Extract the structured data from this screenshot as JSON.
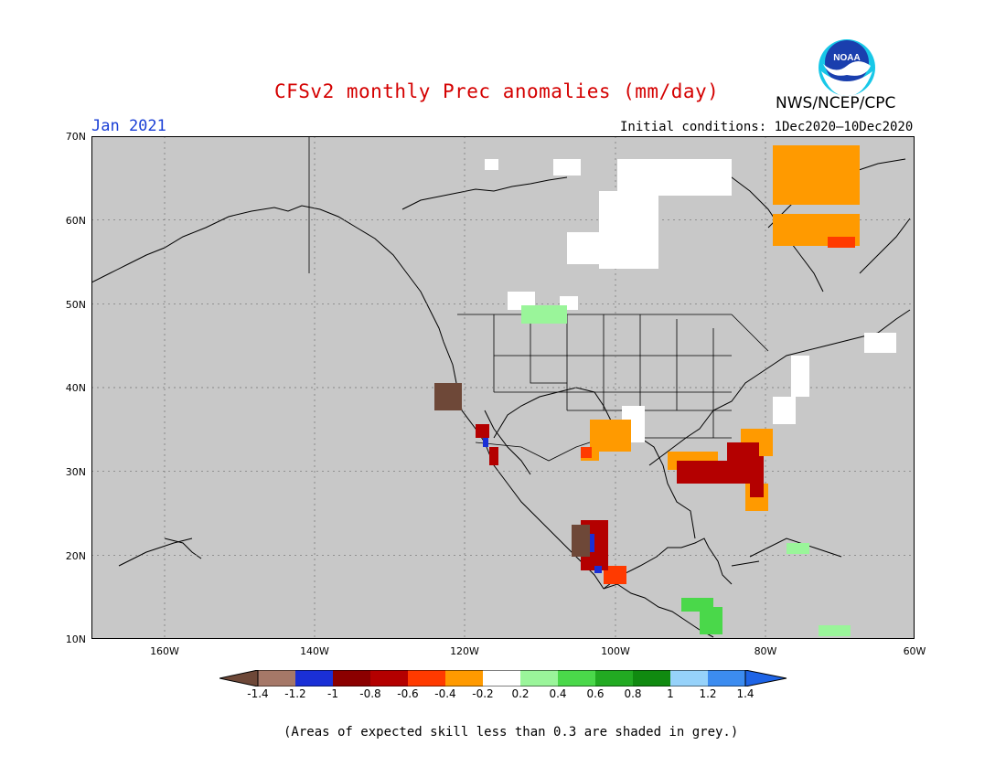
{
  "header": {
    "title": "CFSv2 monthly Prec anomalies (mm/day)",
    "date": "Jan 2021",
    "initial_conditions": "Initial conditions: 1Dec2020—10Dec2020",
    "org": "NWS/NCEP/CPC",
    "logo_text": "NOAA"
  },
  "map": {
    "projection": "lat-lon",
    "lon_range": [
      -172,
      -60
    ],
    "lat_range": [
      10,
      70
    ],
    "lat_labels": [
      "70N",
      "60N",
      "50N",
      "40N",
      "30N",
      "20N",
      "10N"
    ],
    "lon_labels": [
      "160W",
      "140W",
      "120W",
      "100W",
      "80W",
      "60W"
    ],
    "background_color": "#c8c8c8"
  },
  "colorbar": {
    "ticks": [
      "-1.4",
      "-1.2",
      "-1",
      "-0.8",
      "-0.6",
      "-0.4",
      "-0.2",
      "0.2",
      "0.4",
      "0.6",
      "0.8",
      "1",
      "1.2",
      "1.4"
    ],
    "colors": [
      "#6e4838",
      "#a67868",
      "#1a2fd6",
      "#8b0000",
      "#b40000",
      "#ff3a00",
      "#ff9a00",
      "#ffffff",
      "#9af59a",
      "#4ad84a",
      "#22aa22",
      "#108a10",
      "#96d2fa",
      "#3c8cf0",
      "#1e64e6"
    ]
  },
  "footnote": "(Areas of expected skill less than 0.3 are shaded in grey.)"
}
